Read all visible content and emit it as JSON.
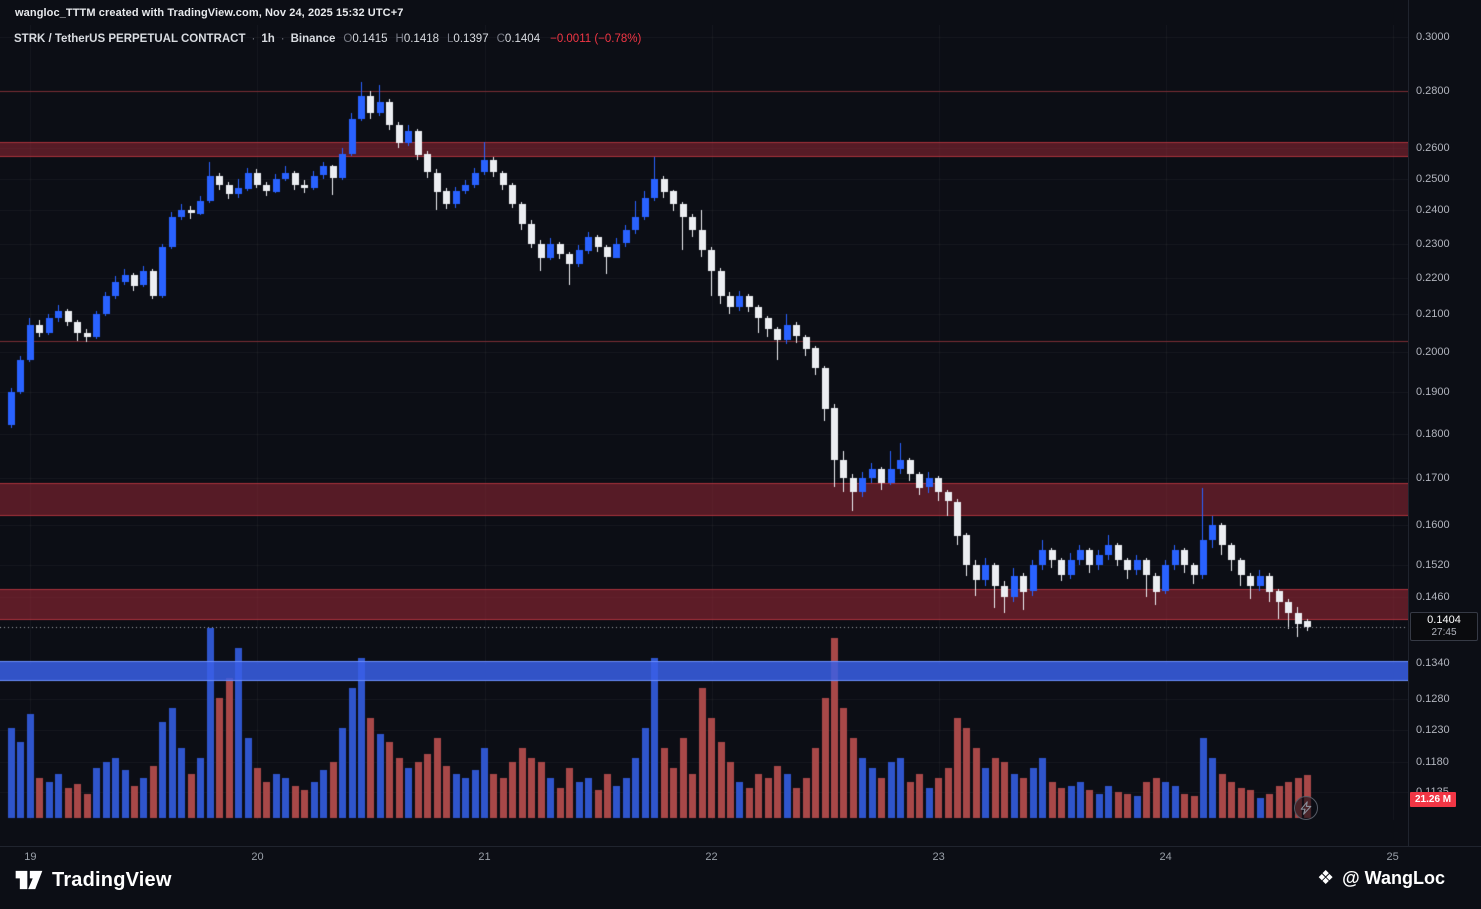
{
  "header": {
    "attribution": "wangloc_TTTM created with TradingView.com, Nov 24, 2025 15:32 UTC+7",
    "legend": {
      "symbol": "STRK / TetherUS PERPETUAL CONTRACT",
      "sep": "·",
      "interval": "1h",
      "exchange": "Binance",
      "o_label": "O",
      "o_value": "0.1415",
      "h_label": "H",
      "h_value": "0.1418",
      "l_label": "L",
      "l_value": "0.1397",
      "c_label": "C",
      "c_value": "0.1404",
      "change": "−0.0011 (−0.78%)"
    }
  },
  "price_axis": {
    "labels": [
      {
        "text": "0.3000",
        "value": 0.3
      },
      {
        "text": "0.2800",
        "value": 0.28
      },
      {
        "text": "0.2600",
        "value": 0.26
      },
      {
        "text": "0.2500",
        "value": 0.25
      },
      {
        "text": "0.2400",
        "value": 0.24
      },
      {
        "text": "0.2300",
        "value": 0.23
      },
      {
        "text": "0.2200",
        "value": 0.22
      },
      {
        "text": "0.2100",
        "value": 0.21
      },
      {
        "text": "0.2000",
        "value": 0.2
      },
      {
        "text": "0.1900",
        "value": 0.19
      },
      {
        "text": "0.1800",
        "value": 0.18
      },
      {
        "text": "0.1700",
        "value": 0.17
      },
      {
        "text": "0.1600",
        "value": 0.16
      },
      {
        "text": "0.1520",
        "value": 0.152
      },
      {
        "text": "0.1460",
        "value": 0.146
      },
      {
        "text": "0.1340",
        "value": 0.134
      },
      {
        "text": "0.1280",
        "value": 0.128
      },
      {
        "text": "0.1230",
        "value": 0.123
      },
      {
        "text": "0.1180",
        "value": 0.118
      },
      {
        "text": "0.1135",
        "value": 0.1135
      }
    ],
    "current_price_badge": {
      "price": "0.1404",
      "countdown": "27:45"
    },
    "volume_badge": "21.26 M"
  },
  "footer": {
    "tradingview_label": "TradingView",
    "watermark": "@ WangLoc"
  },
  "colors": {
    "bg": "#0c0e15",
    "up": "#2962ff",
    "down": "#eceef2",
    "vol_up": "#2f55cc",
    "vol_down": "#a84848",
    "grid": "rgba(255,255,255,0.045)",
    "price_line": "#b7bcc6",
    "accent_red": "#f23645"
  },
  "chart_data": {
    "type": "candlestick+volume",
    "symbol": "STRK/USDT Perpetual",
    "exchange": "Binance",
    "interval": "1h",
    "price_scale": "log",
    "price_range_visible": [
      0.1084,
      0.3047
    ],
    "last_price": 0.1404,
    "last_ohlc": {
      "o": 0.1415,
      "h": 0.1418,
      "l": 0.1397,
      "c": 0.1404
    },
    "change_abs": -0.0011,
    "change_pct": -0.78,
    "last_volume_label": "21.26 M",
    "volume_unit": "M",
    "day_ticks": [
      {
        "index": 2,
        "label": "19"
      },
      {
        "index": 26,
        "label": "20"
      },
      {
        "index": 50,
        "label": "21"
      },
      {
        "index": 74,
        "label": "22"
      },
      {
        "index": 98,
        "label": "23"
      },
      {
        "index": 122,
        "label": "24"
      },
      {
        "index": 146,
        "label": "25"
      }
    ],
    "zones": [
      {
        "kind": "hline",
        "price": 0.28,
        "color": "#7a2e35"
      },
      {
        "kind": "band",
        "top": 0.2622,
        "bottom": 0.2572,
        "fill": "rgba(148,38,52,0.55)",
        "edge": "rgba(190,55,66,0.8)"
      },
      {
        "kind": "hline",
        "price": 0.203,
        "color": "#7a2e35"
      },
      {
        "kind": "band",
        "top": 0.169,
        "bottom": 0.162,
        "fill": "rgba(148,38,52,0.55)",
        "edge": "rgba(190,55,66,0.8)"
      },
      {
        "kind": "band",
        "top": 0.1475,
        "bottom": 0.1416,
        "fill": "rgba(148,38,52,0.6)",
        "edge": "rgba(190,55,66,0.8)"
      },
      {
        "kind": "band",
        "top": 0.1344,
        "bottom": 0.131,
        "fill": "rgba(58,95,230,0.85)",
        "edge": "rgba(110,145,255,0.95)"
      }
    ],
    "candles": [
      [
        0.182,
        0.191,
        0.1815,
        0.19,
        45
      ],
      [
        0.19,
        0.199,
        0.1895,
        0.198,
        38
      ],
      [
        0.198,
        0.209,
        0.1975,
        0.207,
        52
      ],
      [
        0.207,
        0.2085,
        0.204,
        0.205,
        20
      ],
      [
        0.205,
        0.21,
        0.2045,
        0.209,
        18
      ],
      [
        0.209,
        0.2125,
        0.208,
        0.211,
        22
      ],
      [
        0.211,
        0.2115,
        0.207,
        0.208,
        15
      ],
      [
        0.208,
        0.2085,
        0.203,
        0.205,
        17
      ],
      [
        0.205,
        0.206,
        0.2025,
        0.204,
        12
      ],
      [
        0.204,
        0.211,
        0.2035,
        0.21,
        25
      ],
      [
        0.21,
        0.216,
        0.2095,
        0.215,
        28
      ],
      [
        0.215,
        0.2205,
        0.214,
        0.219,
        30
      ],
      [
        0.219,
        0.2225,
        0.218,
        0.221,
        24
      ],
      [
        0.221,
        0.2215,
        0.2165,
        0.218,
        16
      ],
      [
        0.218,
        0.2235,
        0.2175,
        0.222,
        20
      ],
      [
        0.222,
        0.2225,
        0.214,
        0.215,
        26
      ],
      [
        0.215,
        0.23,
        0.2145,
        0.229,
        48
      ],
      [
        0.229,
        0.2395,
        0.2285,
        0.238,
        55
      ],
      [
        0.238,
        0.242,
        0.237,
        0.24,
        35
      ],
      [
        0.24,
        0.2415,
        0.2375,
        0.239,
        22
      ],
      [
        0.239,
        0.2445,
        0.2385,
        0.243,
        30
      ],
      [
        0.243,
        0.2555,
        0.2425,
        0.251,
        95
      ],
      [
        0.251,
        0.252,
        0.2465,
        0.248,
        60
      ],
      [
        0.248,
        0.249,
        0.2435,
        0.245,
        70
      ],
      [
        0.245,
        0.25,
        0.244,
        0.247,
        85
      ],
      [
        0.247,
        0.2535,
        0.246,
        0.252,
        40
      ],
      [
        0.252,
        0.253,
        0.247,
        0.248,
        25
      ],
      [
        0.248,
        0.249,
        0.2445,
        0.246,
        18
      ],
      [
        0.246,
        0.2515,
        0.2455,
        0.25,
        22
      ],
      [
        0.25,
        0.254,
        0.249,
        0.252,
        20
      ],
      [
        0.252,
        0.2525,
        0.2465,
        0.248,
        16
      ],
      [
        0.248,
        0.2495,
        0.2455,
        0.247,
        14
      ],
      [
        0.247,
        0.2525,
        0.2465,
        0.251,
        18
      ],
      [
        0.251,
        0.2555,
        0.25,
        0.254,
        24
      ],
      [
        0.254,
        0.2545,
        0.245,
        0.25,
        28
      ],
      [
        0.25,
        0.26,
        0.2495,
        0.258,
        45
      ],
      [
        0.258,
        0.272,
        0.2575,
        0.27,
        65
      ],
      [
        0.27,
        0.283,
        0.269,
        0.278,
        80
      ],
      [
        0.278,
        0.28,
        0.27,
        0.272,
        50
      ],
      [
        0.272,
        0.282,
        0.271,
        0.276,
        42
      ],
      [
        0.276,
        0.277,
        0.266,
        0.268,
        38
      ],
      [
        0.268,
        0.269,
        0.26,
        0.262,
        30
      ],
      [
        0.262,
        0.268,
        0.261,
        0.266,
        25
      ],
      [
        0.266,
        0.2665,
        0.256,
        0.258,
        28
      ],
      [
        0.258,
        0.259,
        0.25,
        0.252,
        32
      ],
      [
        0.252,
        0.253,
        0.24,
        0.246,
        40
      ],
      [
        0.246,
        0.247,
        0.2405,
        0.242,
        26
      ],
      [
        0.242,
        0.2475,
        0.241,
        0.246,
        22
      ],
      [
        0.246,
        0.2495,
        0.245,
        0.248,
        20
      ],
      [
        0.248,
        0.2535,
        0.247,
        0.252,
        24
      ],
      [
        0.252,
        0.262,
        0.251,
        0.256,
        35
      ],
      [
        0.256,
        0.257,
        0.2505,
        0.252,
        22
      ],
      [
        0.252,
        0.2525,
        0.2465,
        0.248,
        20
      ],
      [
        0.248,
        0.2485,
        0.2405,
        0.242,
        28
      ],
      [
        0.242,
        0.2425,
        0.234,
        0.236,
        35
      ],
      [
        0.236,
        0.237,
        0.2285,
        0.23,
        30
      ],
      [
        0.23,
        0.231,
        0.222,
        0.226,
        28
      ],
      [
        0.226,
        0.2315,
        0.225,
        0.23,
        20
      ],
      [
        0.23,
        0.2305,
        0.2255,
        0.227,
        15
      ],
      [
        0.227,
        0.2275,
        0.218,
        0.224,
        25
      ],
      [
        0.224,
        0.2295,
        0.223,
        0.228,
        18
      ],
      [
        0.228,
        0.2335,
        0.227,
        0.232,
        20
      ],
      [
        0.232,
        0.2325,
        0.2275,
        0.229,
        14
      ],
      [
        0.229,
        0.2295,
        0.221,
        0.226,
        22
      ],
      [
        0.226,
        0.2315,
        0.2255,
        0.23,
        16
      ],
      [
        0.23,
        0.2355,
        0.229,
        0.234,
        20
      ],
      [
        0.234,
        0.243,
        0.233,
        0.238,
        30
      ],
      [
        0.238,
        0.246,
        0.237,
        0.244,
        45
      ],
      [
        0.244,
        0.257,
        0.243,
        0.25,
        80
      ],
      [
        0.25,
        0.251,
        0.244,
        0.246,
        35
      ],
      [
        0.246,
        0.2465,
        0.24,
        0.242,
        25
      ],
      [
        0.242,
        0.2425,
        0.228,
        0.238,
        40
      ],
      [
        0.238,
        0.239,
        0.232,
        0.234,
        22
      ],
      [
        0.234,
        0.24,
        0.226,
        0.228,
        65
      ],
      [
        0.228,
        0.229,
        0.215,
        0.222,
        50
      ],
      [
        0.222,
        0.223,
        0.213,
        0.215,
        38
      ],
      [
        0.215,
        0.216,
        0.21,
        0.212,
        28
      ],
      [
        0.212,
        0.2165,
        0.211,
        0.215,
        18
      ],
      [
        0.215,
        0.2155,
        0.2105,
        0.212,
        15
      ],
      [
        0.212,
        0.2125,
        0.205,
        0.209,
        22
      ],
      [
        0.209,
        0.2095,
        0.204,
        0.206,
        20
      ],
      [
        0.206,
        0.2065,
        0.198,
        0.203,
        26
      ],
      [
        0.203,
        0.21,
        0.202,
        0.207,
        22
      ],
      [
        0.207,
        0.208,
        0.2025,
        0.204,
        15
      ],
      [
        0.204,
        0.2045,
        0.199,
        0.201,
        20
      ],
      [
        0.201,
        0.2015,
        0.194,
        0.196,
        35
      ],
      [
        0.196,
        0.1965,
        0.183,
        0.186,
        60
      ],
      [
        0.186,
        0.187,
        0.168,
        0.174,
        90
      ],
      [
        0.174,
        0.176,
        0.167,
        0.17,
        55
      ],
      [
        0.17,
        0.171,
        0.163,
        0.167,
        40
      ],
      [
        0.167,
        0.1715,
        0.166,
        0.17,
        30
      ],
      [
        0.17,
        0.1735,
        0.169,
        0.172,
        25
      ],
      [
        0.172,
        0.1725,
        0.1675,
        0.169,
        20
      ],
      [
        0.169,
        0.176,
        0.1685,
        0.172,
        28
      ],
      [
        0.172,
        0.178,
        0.171,
        0.174,
        30
      ],
      [
        0.174,
        0.1745,
        0.1695,
        0.171,
        18
      ],
      [
        0.171,
        0.1715,
        0.1665,
        0.168,
        22
      ],
      [
        0.168,
        0.1715,
        0.167,
        0.17,
        15
      ],
      [
        0.17,
        0.1705,
        0.165,
        0.167,
        20
      ],
      [
        0.167,
        0.1675,
        0.162,
        0.165,
        25
      ],
      [
        0.165,
        0.1655,
        0.156,
        0.158,
        50
      ],
      [
        0.158,
        0.1585,
        0.15,
        0.152,
        45
      ],
      [
        0.152,
        0.153,
        0.146,
        0.149,
        35
      ],
      [
        0.149,
        0.1535,
        0.148,
        0.152,
        25
      ],
      [
        0.152,
        0.1525,
        0.144,
        0.148,
        30
      ],
      [
        0.148,
        0.149,
        0.143,
        0.146,
        28
      ],
      [
        0.146,
        0.1515,
        0.145,
        0.15,
        22
      ],
      [
        0.15,
        0.1505,
        0.1435,
        0.147,
        20
      ],
      [
        0.147,
        0.153,
        0.146,
        0.152,
        25
      ],
      [
        0.152,
        0.157,
        0.151,
        0.155,
        30
      ],
      [
        0.155,
        0.1555,
        0.1515,
        0.153,
        18
      ],
      [
        0.153,
        0.1535,
        0.149,
        0.15,
        15
      ],
      [
        0.15,
        0.1545,
        0.1495,
        0.153,
        16
      ],
      [
        0.153,
        0.156,
        0.152,
        0.155,
        18
      ],
      [
        0.155,
        0.1555,
        0.1505,
        0.152,
        14
      ],
      [
        0.152,
        0.155,
        0.151,
        0.154,
        12
      ],
      [
        0.154,
        0.158,
        0.153,
        0.156,
        16
      ],
      [
        0.156,
        0.1565,
        0.152,
        0.153,
        13
      ],
      [
        0.153,
        0.1535,
        0.1495,
        0.151,
        12
      ],
      [
        0.151,
        0.154,
        0.15,
        0.153,
        11
      ],
      [
        0.153,
        0.1535,
        0.146,
        0.15,
        18
      ],
      [
        0.15,
        0.1505,
        0.1445,
        0.147,
        20
      ],
      [
        0.147,
        0.153,
        0.1465,
        0.152,
        18
      ],
      [
        0.152,
        0.156,
        0.151,
        0.155,
        16
      ],
      [
        0.155,
        0.1555,
        0.1505,
        0.152,
        12
      ],
      [
        0.152,
        0.1525,
        0.1485,
        0.15,
        11
      ],
      [
        0.15,
        0.168,
        0.1495,
        0.157,
        40
      ],
      [
        0.157,
        0.162,
        0.1555,
        0.16,
        30
      ],
      [
        0.16,
        0.1605,
        0.154,
        0.156,
        22
      ],
      [
        0.156,
        0.1565,
        0.151,
        0.153,
        18
      ],
      [
        0.153,
        0.1535,
        0.148,
        0.15,
        15
      ],
      [
        0.15,
        0.1505,
        0.1455,
        0.148,
        14
      ],
      [
        0.148,
        0.151,
        0.147,
        0.15,
        10
      ],
      [
        0.15,
        0.1505,
        0.145,
        0.147,
        12
      ],
      [
        0.147,
        0.1475,
        0.142,
        0.145,
        16
      ],
      [
        0.145,
        0.1455,
        0.14,
        0.143,
        18
      ],
      [
        0.143,
        0.144,
        0.1385,
        0.141,
        20
      ],
      [
        0.1415,
        0.1418,
        0.1397,
        0.1404,
        21.26
      ]
    ]
  }
}
